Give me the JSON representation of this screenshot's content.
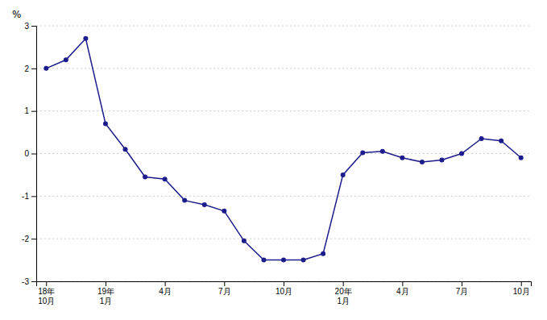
{
  "chart_data": {
    "type": "line",
    "y_label": "%",
    "categories": [
      "18年\n10月",
      null,
      null,
      "19年\n1月",
      null,
      null,
      "4月",
      null,
      null,
      "7月",
      null,
      null,
      "10月",
      null,
      null,
      "20年\n1月",
      null,
      null,
      "4月",
      null,
      null,
      "7月",
      null,
      null,
      "10月"
    ],
    "values": [
      2.0,
      2.2,
      2.7,
      0.7,
      0.1,
      -0.55,
      -0.6,
      -1.1,
      -1.2,
      -1.35,
      -2.05,
      -2.5,
      -2.5,
      -2.5,
      -2.35,
      -0.5,
      0.02,
      0.05,
      -0.1,
      -0.2,
      -0.15,
      0.0,
      0.35,
      0.3,
      -0.1
    ],
    "color": "#1C1C8C",
    "marker": "circle",
    "ylim": [
      -3,
      3
    ],
    "yticks": [
      -3,
      -2,
      -1,
      0,
      1,
      2,
      3
    ],
    "grid": true
  }
}
